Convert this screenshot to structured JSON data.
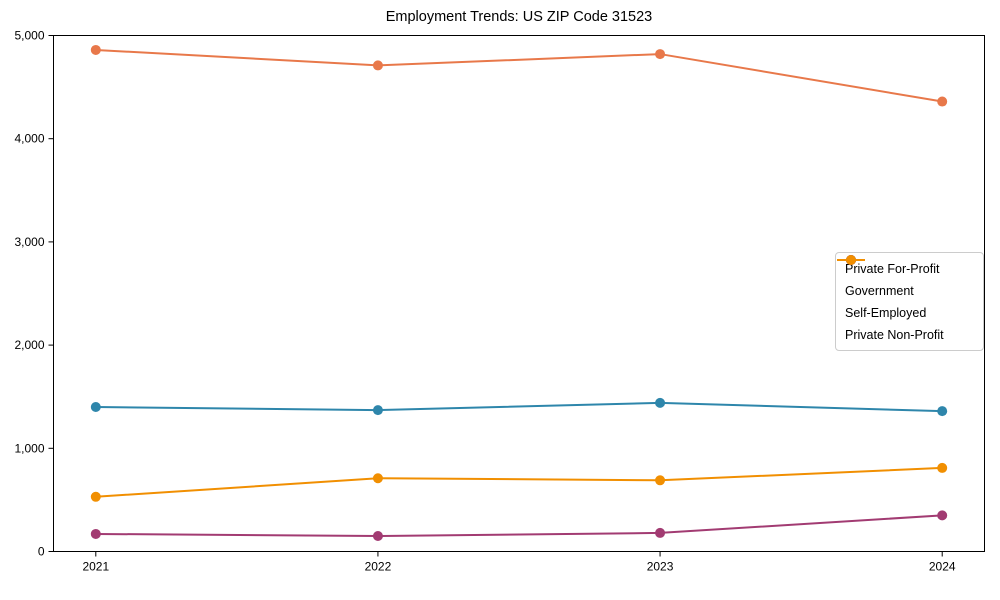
{
  "title": "Employment Trends: US ZIP Code 31523",
  "chart_data": {
    "type": "line",
    "title": "Employment Trends: US ZIP Code 31523",
    "xlabel": "",
    "ylabel": "",
    "x_labels": [
      "2021",
      "2022",
      "2023",
      "2024"
    ],
    "series": [
      {
        "name": "Private For-Profit",
        "color": "#e8784a",
        "values": [
          4860,
          4710,
          4820,
          4360
        ]
      },
      {
        "name": "Government",
        "color": "#2e86ab",
        "values": [
          1400,
          1370,
          1440,
          1360
        ]
      },
      {
        "name": "Self-Employed",
        "color": "#a23b72",
        "values": [
          170,
          150,
          180,
          350
        ]
      },
      {
        "name": "Private Non-Profit",
        "color": "#f18f01",
        "values": [
          530,
          710,
          690,
          810
        ]
      }
    ],
    "ylim": [
      0,
      5000
    ],
    "yticks": [
      0,
      1000,
      2000,
      3000,
      4000,
      5000
    ],
    "ytick_labels": [
      "0",
      "1,000",
      "2,000",
      "3,000",
      "4,000",
      "5,000"
    ],
    "grid": false,
    "legend_position": "center right",
    "marker": "circle",
    "background_color": "#ffffff",
    "axis_color": "#000000"
  }
}
